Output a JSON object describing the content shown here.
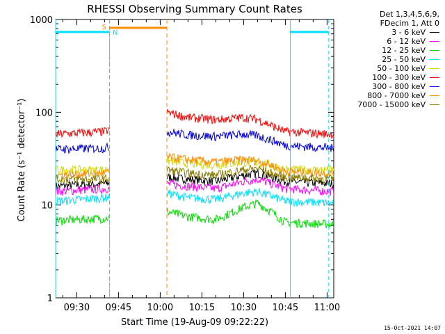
{
  "chart_data": {
    "type": "line",
    "title": "RHESSI Observing Summary Count Rates",
    "xlabel": "Start Time (19-Aug-09 09:22:22)",
    "ylabel": "Count Rate (s⁻¹ detector⁻¹)",
    "x_tick_labels": [
      "09:30",
      "09:45",
      "10:00",
      "10:15",
      "10:30",
      "10:45",
      "11:00"
    ],
    "x_ticks_min": [
      30,
      45,
      60,
      75,
      90,
      105,
      120
    ],
    "xlim_min": [
      22.4,
      122.4
    ],
    "y_scale": "log",
    "ylim": [
      1,
      1000
    ],
    "y_tick_labels": [
      "1",
      "10",
      "100",
      "1000"
    ],
    "legend_header": [
      "Det 1,3,4,5,6,9,",
      "FDecim 1, Att 0"
    ],
    "legend_placement": "top-right, outside plot",
    "data_gap_min": [
      41.8,
      62.4
    ],
    "series": [
      {
        "name": "3 - 6 keV",
        "color": "#000000",
        "x": [
          22.4,
          40,
          62.4,
          70,
          80,
          90,
          95,
          100,
          105,
          122.4
        ],
        "y": [
          16,
          17,
          20,
          19,
          18,
          21,
          22,
          20,
          18,
          17
        ]
      },
      {
        "name": "6 - 12 keV",
        "color": "#ff00ff",
        "x": [
          22.4,
          40,
          62.4,
          70,
          80,
          90,
          95,
          100,
          105,
          122.4
        ],
        "y": [
          14,
          15,
          17,
          16,
          15,
          18,
          19,
          17,
          15,
          14
        ]
      },
      {
        "name": "12 - 25 keV",
        "color": "#00e000",
        "x": [
          22.4,
          40,
          62.4,
          70,
          80,
          90,
          95,
          100,
          105,
          122.4
        ],
        "y": [
          6.8,
          7.2,
          8.5,
          7.5,
          7,
          9.5,
          10.5,
          8.5,
          6.5,
          6.2
        ]
      },
      {
        "name": "25 - 50 keV",
        "color": "#00e0ff",
        "x": [
          22.4,
          40,
          62.4,
          70,
          80,
          90,
          95,
          100,
          105,
          122.4
        ],
        "y": [
          11,
          12,
          13.5,
          12,
          11.5,
          13.5,
          14,
          12.5,
          11,
          10.5
        ]
      },
      {
        "name": "50 - 100 keV",
        "color": "#d8d800",
        "x": [
          22.4,
          40,
          62.4,
          70,
          80,
          90,
          95,
          100,
          105,
          122.4
        ],
        "y": [
          24,
          24,
          30,
          28,
          27,
          29,
          29,
          27,
          24,
          24
        ]
      },
      {
        "name": "100 - 300 keV",
        "color": "#ff0000",
        "x": [
          22.4,
          40,
          62.4,
          70,
          80,
          90,
          95,
          100,
          105,
          122.4
        ],
        "y": [
          58,
          62,
          100,
          88,
          83,
          88,
          84,
          72,
          62,
          58
        ]
      },
      {
        "name": "300 - 800 keV",
        "color": "#0000e0",
        "x": [
          22.4,
          40,
          62.4,
          70,
          80,
          90,
          95,
          100,
          105,
          122.4
        ],
        "y": [
          40,
          41,
          62,
          57,
          55,
          58,
          56,
          50,
          44,
          41
        ]
      },
      {
        "name": "800 - 7000 keV",
        "color": "#ff8c00",
        "x": [
          22.4,
          40,
          62.4,
          70,
          80,
          90,
          95,
          100,
          105,
          122.4
        ],
        "y": [
          21,
          22,
          33,
          31,
          29,
          31,
          30,
          27,
          23,
          22
        ]
      },
      {
        "name": "7000 - 15000 keV",
        "color": "#8b7d00",
        "x": [
          22.4,
          40,
          62.4,
          70,
          80,
          90,
          95,
          100,
          105,
          122.4
        ],
        "y": [
          19,
          19,
          24,
          22,
          21,
          24,
          25,
          22,
          20,
          19
        ]
      }
    ],
    "annotations": [
      {
        "text": "S",
        "color": "#ff8c00",
        "x_min": 41.8,
        "meaning": "SAA interval",
        "x_range": [
          41.8,
          62.4
        ]
      },
      {
        "text": "N",
        "color": "#00e0ff",
        "x_min": 41.8,
        "meaning": "Night interval",
        "ranges": [
          [
            22.4,
            41.8
          ],
          [
            106.8,
            120.6
          ]
        ]
      }
    ]
  },
  "footer": {
    "timestamp": "15-Oct-2021 14:07"
  }
}
